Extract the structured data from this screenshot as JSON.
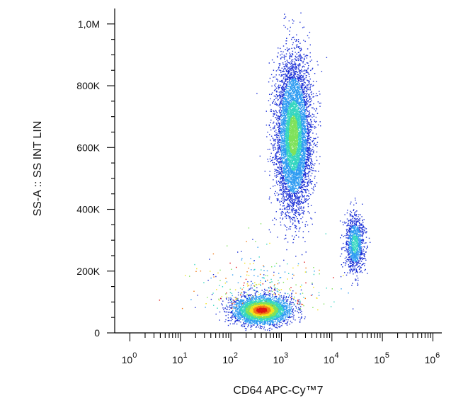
{
  "chart_data": {
    "type": "scatter",
    "subtype": "flow-cytometry-density-dot-plot",
    "xlabel": "CD64 APC-Cy™7",
    "ylabel": "SS-A :: SS INT LIN",
    "x_scale": "log",
    "y_scale": "linear",
    "xlim": [
      0.5,
      1500000
    ],
    "ylim": [
      0,
      1050000
    ],
    "x_ticks": [
      {
        "value": 1,
        "base": "10",
        "exp": "0"
      },
      {
        "value": 10,
        "base": "10",
        "exp": "1"
      },
      {
        "value": 100,
        "base": "10",
        "exp": "2"
      },
      {
        "value": 1000,
        "base": "10",
        "exp": "3"
      },
      {
        "value": 10000,
        "base": "10",
        "exp": "4"
      },
      {
        "value": 100000,
        "base": "10",
        "exp": "5"
      },
      {
        "value": 1000000,
        "base": "10",
        "exp": "6"
      }
    ],
    "y_ticks": [
      {
        "value": 0,
        "label": "0"
      },
      {
        "value": 200000,
        "label": "200K"
      },
      {
        "value": 400000,
        "label": "400K"
      },
      {
        "value": 600000,
        "label": "600K"
      },
      {
        "value": 800000,
        "label": "800K"
      },
      {
        "value": 1000000,
        "label": "1,0M"
      }
    ],
    "grid": false,
    "density_colors": [
      "#1a2fd6",
      "#2f9cf2",
      "#35d6c0",
      "#7ee25a",
      "#f2e21c",
      "#f07a16",
      "#e01414"
    ],
    "populations": [
      {
        "x_center": 400,
        "y_center": 75000,
        "x_log_spread": 0.27,
        "y_spread": 22000,
        "events": 4200
      },
      {
        "x_center": 1700,
        "y_center": 640000,
        "x_log_spread": 0.17,
        "y_spread": 120000,
        "events": 6500
      },
      {
        "x_center": 28000,
        "y_center": 290000,
        "x_log_spread": 0.1,
        "y_spread": 48000,
        "events": 1100
      }
    ]
  }
}
